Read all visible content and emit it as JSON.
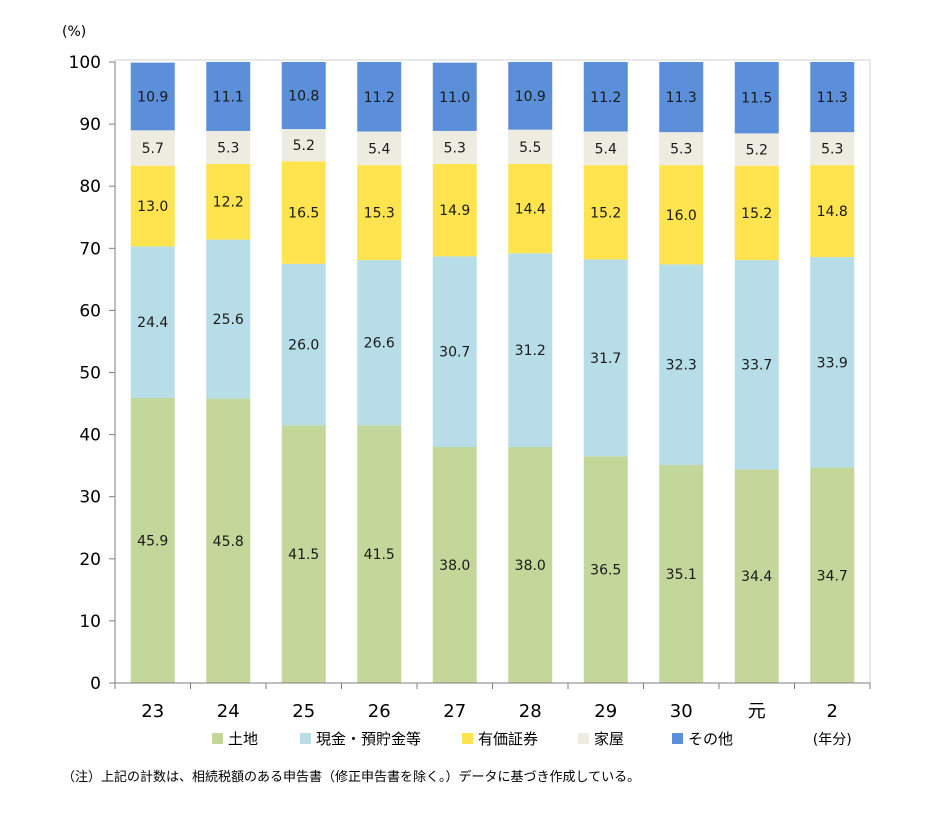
{
  "chart_data": {
    "type": "bar",
    "stacked": true,
    "y_unit": "(%)",
    "ylim": [
      0,
      100
    ],
    "yticks": [
      0,
      10,
      20,
      30,
      40,
      50,
      60,
      70,
      80,
      90,
      100
    ],
    "categories": [
      "23",
      "24",
      "25",
      "26",
      "27",
      "28",
      "29",
      "30",
      "元",
      "2"
    ],
    "x_unit": "(年分)",
    "series": [
      {
        "name": "土地",
        "color": "#c4d79b",
        "values": [
          45.9,
          45.8,
          41.5,
          41.5,
          38.0,
          38.0,
          36.5,
          35.1,
          34.4,
          34.7
        ]
      },
      {
        "name": "現金・預貯金等",
        "color": "#b7dde8",
        "values": [
          24.4,
          25.6,
          26.0,
          26.6,
          30.7,
          31.2,
          31.7,
          32.3,
          33.7,
          33.9
        ]
      },
      {
        "name": "有価証券",
        "color": "#ffe34f",
        "values": [
          13.0,
          12.2,
          16.5,
          15.3,
          14.9,
          14.4,
          15.2,
          16.0,
          15.2,
          14.8
        ]
      },
      {
        "name": "家屋",
        "color": "#eeece1",
        "values": [
          5.7,
          5.3,
          5.2,
          5.4,
          5.3,
          5.5,
          5.4,
          5.3,
          5.2,
          5.3
        ]
      },
      {
        "name": "その他",
        "color": "#5b8fd9",
        "values": [
          10.9,
          11.1,
          10.8,
          11.2,
          11.0,
          10.9,
          11.2,
          11.3,
          11.5,
          11.3
        ]
      }
    ],
    "value_labels": [
      [
        "45.9",
        "45.8",
        "41.5",
        "41.5",
        "38.0",
        "38.0",
        "36.5",
        "35.1",
        "34.4",
        "34.7"
      ],
      [
        "24.4",
        "25.6",
        "26.0",
        "26.6",
        "30.7",
        "31.2",
        "31.7",
        "32.3",
        "33.7",
        "33.9"
      ],
      [
        "13.0",
        "12.2",
        "16.5",
        "15.3",
        "14.9",
        "14.4",
        "15.2",
        "16.0",
        "15.2",
        "14.8"
      ],
      [
        "5.7",
        "5.3",
        "5.2",
        "5.4",
        "5.3",
        "5.5",
        "5.4",
        "5.3",
        "5.2",
        "5.3"
      ],
      [
        "10.9",
        "11.1",
        "10.8",
        "11.2",
        "11.0",
        "10.9",
        "11.2",
        "11.3",
        "11.5",
        "11.3"
      ]
    ],
    "legend_position": "bottom",
    "note": "（注）上記の計数は、相続税額のある申告書（修正申告書を除く。）データに基づき作成している。"
  }
}
